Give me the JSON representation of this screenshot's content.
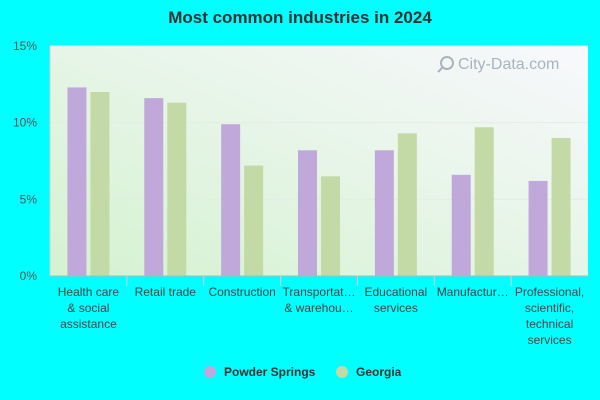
{
  "chart_data": {
    "type": "bar",
    "title": "Most common industries in 2024",
    "xlabel": "",
    "ylabel": "",
    "ylim": [
      0,
      15
    ],
    "yticks": [
      "0%",
      "5%",
      "10%",
      "15%"
    ],
    "grid": true,
    "legend_position": "bottom",
    "categories": [
      [
        "Health care",
        "& social",
        "assistance"
      ],
      [
        "Retail trade"
      ],
      [
        "Construction"
      ],
      [
        "Transportat…",
        "& warehou…"
      ],
      [
        "Educational",
        "services"
      ],
      [
        "Manufactur…"
      ],
      [
        "Professional,",
        "scientific,",
        "technical",
        "services"
      ]
    ],
    "series": [
      {
        "name": "Powder Springs",
        "color": "#c0a9da",
        "values": [
          12.3,
          11.6,
          9.9,
          8.2,
          8.2,
          6.6,
          6.2
        ]
      },
      {
        "name": "Georgia",
        "color": "#c3d9a6",
        "values": [
          12.0,
          11.3,
          7.2,
          6.5,
          9.3,
          9.7,
          9.0
        ]
      }
    ]
  },
  "watermark": "City-Data.com"
}
